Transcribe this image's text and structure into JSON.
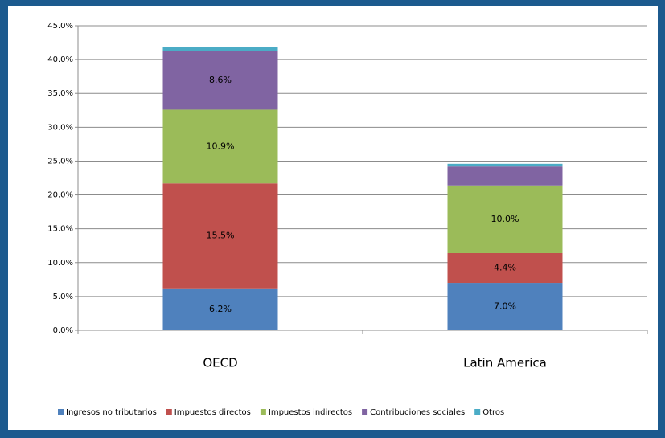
{
  "chart_data": {
    "type": "stacked_bar",
    "categories": [
      "OECD",
      "Latin America"
    ],
    "series": [
      {
        "name": "Ingresos no tributarios",
        "color": "#4f81bd",
        "values": [
          6.2,
          7.0
        ],
        "value_labels": [
          "6.2%",
          "7.0%"
        ]
      },
      {
        "name": "Impuestos directos",
        "color": "#c0504d",
        "values": [
          15.5,
          4.4
        ],
        "value_labels": [
          "15.5%",
          "4.4%"
        ]
      },
      {
        "name": "Impuestos indirectos",
        "color": "#9bbb59",
        "values": [
          10.9,
          10.0
        ],
        "value_labels": [
          "10.9%",
          "10.0%"
        ]
      },
      {
        "name": "Contribuciones sociales",
        "color": "#8064a2",
        "values": [
          8.6,
          2.8
        ],
        "value_labels": [
          "8.6%",
          null
        ]
      },
      {
        "name": "Otros",
        "color": "#4bacc6",
        "values": [
          0.7,
          0.4
        ],
        "value_labels": [
          null,
          null
        ]
      }
    ],
    "ylim": [
      0,
      45
    ],
    "yticks": [
      {
        "value": 0,
        "label": "0.0%"
      },
      {
        "value": 5,
        "label": "5.0%"
      },
      {
        "value": 10,
        "label": "10.0%"
      },
      {
        "value": 15,
        "label": "15.0%"
      },
      {
        "value": 20,
        "label": "20.0%"
      },
      {
        "value": 25,
        "label": "25.0%"
      },
      {
        "value": 30,
        "label": "30.0%"
      },
      {
        "value": 35,
        "label": "35.0%"
      },
      {
        "value": 40,
        "label": "40.0%"
      },
      {
        "value": 45,
        "label": "45.0%"
      }
    ],
    "grid": true,
    "legend": "bottom"
  }
}
